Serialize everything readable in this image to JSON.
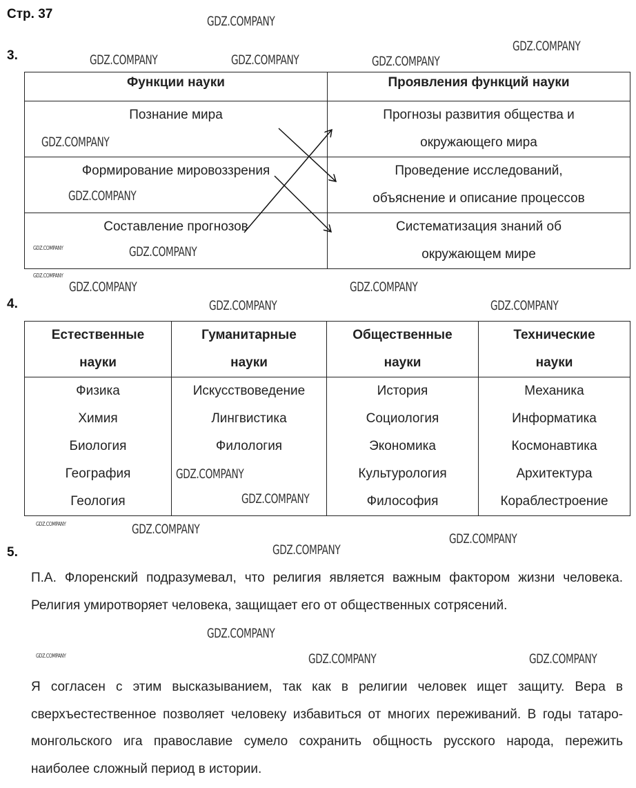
{
  "page_label": "Стр. 37",
  "watermark": "GDZ.COMPANY",
  "task3": {
    "number": "3.",
    "headers": [
      "Функции науки",
      "Проявления функций науки"
    ],
    "left": [
      "Познание мира",
      "Формирование мировоззрения",
      "Составление прогнозов"
    ],
    "right": [
      [
        "Прогнозы развития общества и",
        "окружающего мира"
      ],
      [
        "Проведение исследований,",
        "объяснение и описание процессов"
      ],
      [
        "Систематизация знаний об",
        "окружающем мире"
      ]
    ]
  },
  "task4": {
    "number": "4.",
    "headers": [
      [
        "Естественные",
        "науки"
      ],
      [
        "Гуманитарные",
        "науки"
      ],
      [
        "Общественные",
        "науки"
      ],
      [
        "Технические",
        "науки"
      ]
    ],
    "columns": [
      [
        "Физика",
        "Химия",
        "Биология",
        "География",
        "Геология"
      ],
      [
        "Искусствоведение",
        "Лингвистика",
        "Филология"
      ],
      [
        "История",
        "Социология",
        "Экономика",
        "Культурология",
        "Философия"
      ],
      [
        "Механика",
        "Информатика",
        "Космонавтика",
        "Архитектура",
        "Кораблестроение"
      ]
    ]
  },
  "task5": {
    "number": "5.",
    "paragraphs": [
      "П.А. Флоренский подразумевал, что религия является важным фактором жизни человека. Религия умиротворяет человека, защищает его от общественных сотрясений.",
      "Я согласен с этим высказыванием, так как в религии человек ищет защиту. Вера в сверхъестественное позволяет человеку избавиться от многих переживаний. В годы татаро-монгольского ига православие сумело сохранить общность русского народа, пережить наиболее сложный период в истории."
    ]
  }
}
